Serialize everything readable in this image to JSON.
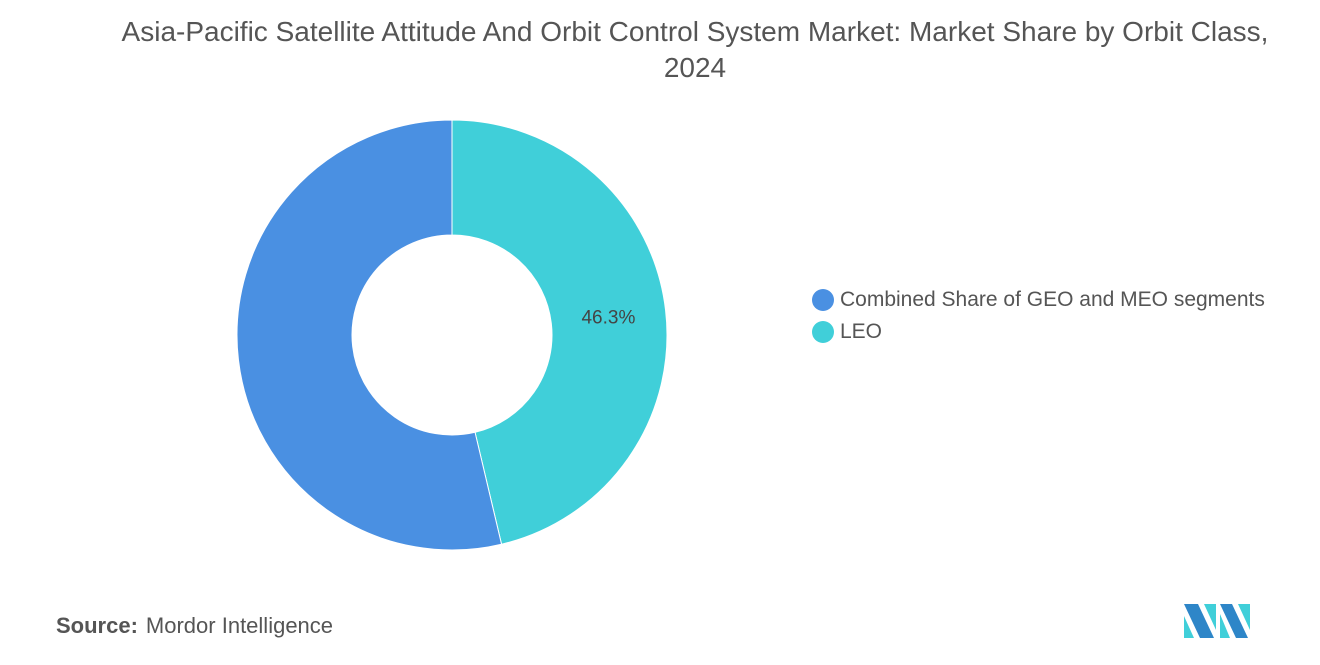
{
  "title": "Asia-Pacific Satellite Attitude And Orbit Control System Market: Market Share by Orbit Class, 2024",
  "source_label": "Source:",
  "source_value": "Mordor Intelligence",
  "logo_text": "Mordor Intelligence",
  "chart_data": {
    "type": "pie",
    "variant": "donut",
    "title": "Asia-Pacific Satellite Attitude And Orbit Control System Market: Market Share by Orbit Class, 2024",
    "legend_position": "right",
    "slices": [
      {
        "name": "LEO",
        "value": 46.3,
        "label": "46.3%",
        "color": "#40CFD9"
      },
      {
        "name": "Combined Share of GEO and MEO segments",
        "value": 53.7,
        "label": "",
        "color": "#4A90E2"
      }
    ],
    "legend": [
      "Combined Share of GEO and MEO segments",
      "LEO"
    ]
  }
}
